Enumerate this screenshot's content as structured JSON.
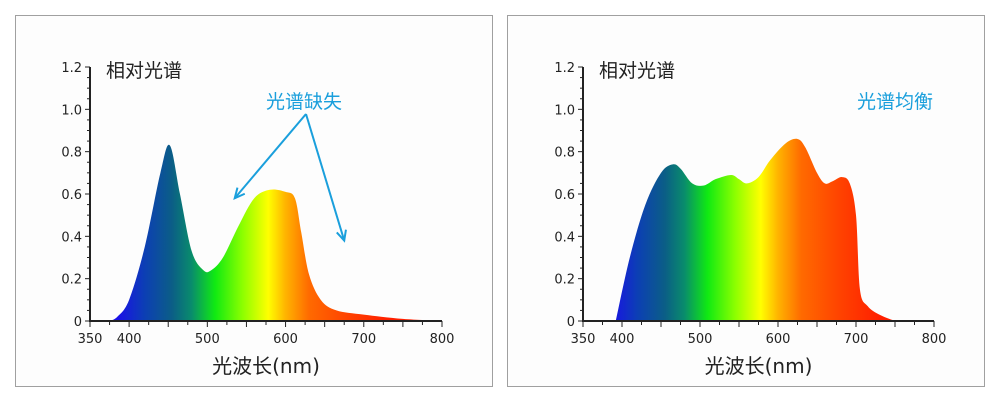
{
  "chart_data": [
    {
      "type": "area",
      "title": "相对光谱",
      "xlabel": "光波长(nm)",
      "ylabel": "",
      "xlim": [
        350,
        800
      ],
      "ylim": [
        0,
        1.2
      ],
      "xticks": [
        "350",
        "400",
        "500",
        "600",
        "700",
        "800"
      ],
      "yticks": [
        "0",
        "0.2",
        "0.4",
        "0.6",
        "0.8",
        "1.0",
        "1.2"
      ],
      "grid": false,
      "fill": "visible-spectrum-gradient",
      "annotation": {
        "text": "光谱缺失",
        "color": "#1a9fdc",
        "arrows_to": [
          [
            535,
            0.58
          ],
          [
            675,
            0.38
          ]
        ]
      },
      "x": [
        375,
        385,
        400,
        420,
        440,
        452,
        465,
        480,
        495,
        505,
        520,
        540,
        560,
        580,
        600,
        612,
        620,
        630,
        645,
        665,
        700,
        750,
        800
      ],
      "y": [
        0,
        0.02,
        0.1,
        0.35,
        0.7,
        0.83,
        0.6,
        0.33,
        0.24,
        0.24,
        0.3,
        0.45,
        0.58,
        0.62,
        0.61,
        0.58,
        0.42,
        0.22,
        0.1,
        0.05,
        0.03,
        0.01,
        0
      ]
    },
    {
      "type": "area",
      "title": "相对光谱",
      "xlabel": "光波长(nm)",
      "ylabel": "",
      "xlim": [
        350,
        800
      ],
      "ylim": [
        0,
        1.2
      ],
      "xticks": [
        "350",
        "400",
        "500",
        "600",
        "700",
        "800"
      ],
      "yticks": [
        "0",
        "0.2",
        "0.4",
        "0.6",
        "0.8",
        "1.0",
        "1.2"
      ],
      "grid": false,
      "fill": "visible-spectrum-gradient",
      "annotation": {
        "text": "光谱均衡",
        "color": "#1a9fdc"
      },
      "x": [
        392,
        410,
        430,
        450,
        465,
        475,
        490,
        505,
        520,
        540,
        550,
        560,
        575,
        590,
        610,
        625,
        635,
        650,
        660,
        670,
        682,
        692,
        700,
        705,
        715,
        730,
        750
      ],
      "y": [
        0,
        0.3,
        0.55,
        0.7,
        0.74,
        0.72,
        0.65,
        0.64,
        0.67,
        0.69,
        0.67,
        0.65,
        0.68,
        0.76,
        0.84,
        0.86,
        0.82,
        0.7,
        0.65,
        0.66,
        0.68,
        0.65,
        0.5,
        0.15,
        0.07,
        0.03,
        0
      ]
    }
  ]
}
